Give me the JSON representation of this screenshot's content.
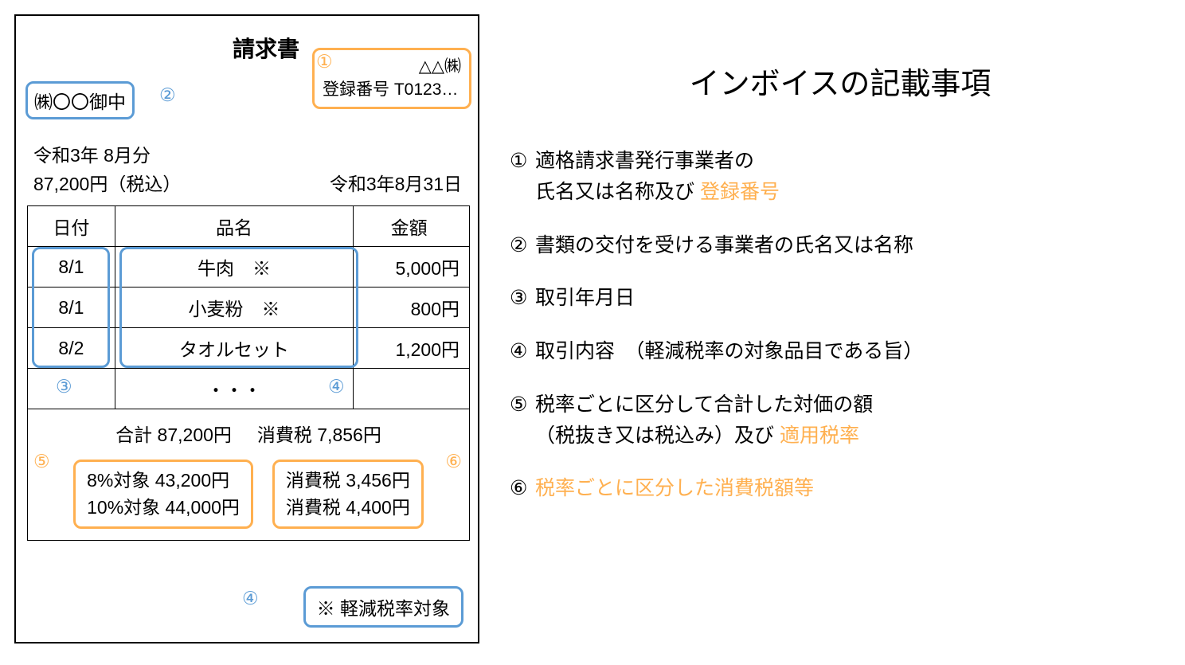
{
  "colors": {
    "orange": "#ffb050",
    "blue": "#5b9bd5",
    "text": "#000000",
    "bg": "#ffffff"
  },
  "invoice": {
    "title": "請求書",
    "issuer": {
      "marker": "①",
      "name": "△△㈱",
      "reg_label": "登録番号 T0123…"
    },
    "recipient": {
      "marker": "②",
      "text": "㈱〇〇御中"
    },
    "period": "令和3年 8月分",
    "total_incl": "87,200円（税込）",
    "issue_date": "令和3年8月31日",
    "table": {
      "headers": {
        "date": "日付",
        "item": "品名",
        "amount": "金額"
      },
      "rows": [
        {
          "date": "8/1",
          "item": "牛肉　※",
          "amount": "5,000円"
        },
        {
          "date": "8/1",
          "item": "小麦粉　※",
          "amount": "800円"
        },
        {
          "date": "8/2",
          "item": "タオルセット",
          "amount": "1,200円"
        }
      ],
      "ellipsis_row": {
        "marker3": "③",
        "dots": "・・・",
        "marker4": "④"
      }
    },
    "summary": {
      "total_label": "合計 87,200円",
      "tax_label": "消費税 7,856円",
      "marker5": "⑤",
      "marker6": "⑥",
      "group_a": {
        "line1": "8%対象 43,200円",
        "line2": "10%対象 44,000円"
      },
      "group_b": {
        "line1": "消費税 3,456円",
        "line2": "消費税 4,400円"
      }
    },
    "footnote": {
      "marker": "④",
      "text": "※ 軽減税率対象"
    }
  },
  "right": {
    "title": "インボイスの記載事項",
    "items": [
      {
        "num": "①",
        "line1": "適格請求書発行事業者の",
        "line2_pre": "氏名又は名称及び ",
        "line2_hl": "登録番号"
      },
      {
        "num": "②",
        "line1": "書類の交付を受ける事業者の氏名又は名称"
      },
      {
        "num": "③",
        "line1": "取引年月日"
      },
      {
        "num": "④",
        "line1": "取引内容　（軽減税率の対象品目である旨）"
      },
      {
        "num": "⑤",
        "line1": "税率ごとに区分して合計した対価の額",
        "line2_pre": "（税抜き又は税込み）及び ",
        "line2_hl": "適用税率"
      },
      {
        "num": "⑥",
        "line1_hl": "税率ごとに区分した消費税額等"
      }
    ]
  }
}
